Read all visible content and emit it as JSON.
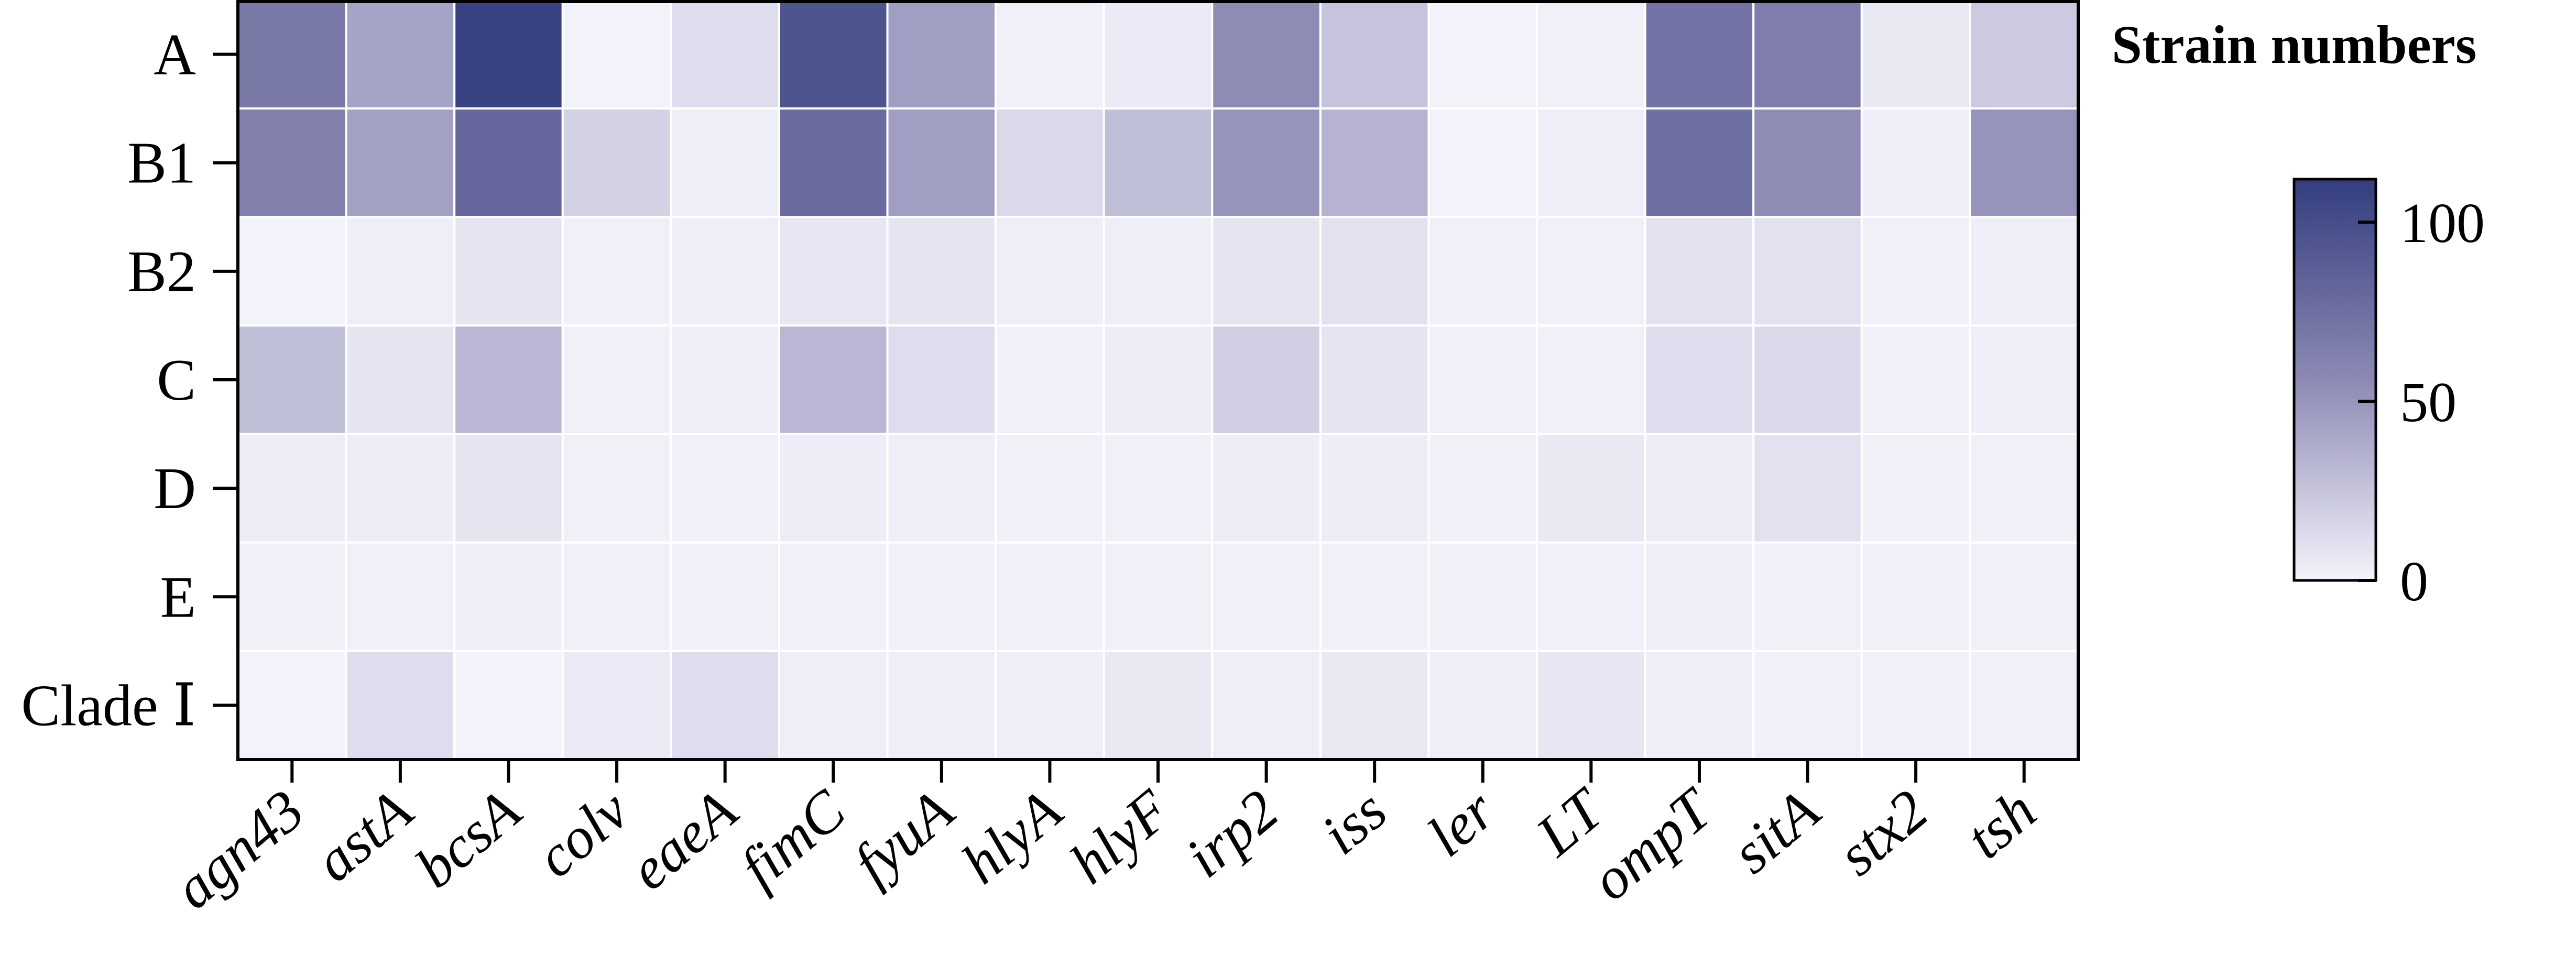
{
  "chart_data": {
    "type": "heatmap",
    "rows": [
      "A",
      "B1",
      "B2",
      "C",
      "D",
      "E",
      "Clade Ⅰ"
    ],
    "columns": [
      "agn43",
      "astA",
      "bcsA",
      "colv",
      "eaeA",
      "fimC",
      "fyuA",
      "hlyA",
      "hlyF",
      "irp2",
      "iss",
      "ler",
      "LT",
      "ompT",
      "sitA",
      "stx2",
      "tsh"
    ],
    "values": [
      [
        68,
        42,
        108,
        1,
        12,
        95,
        45,
        2,
        5,
        55,
        25,
        1,
        2,
        72,
        65,
        6,
        22
      ],
      [
        62,
        44,
        80,
        18,
        3,
        78,
        45,
        14,
        28,
        50,
        34,
        1,
        3,
        75,
        55,
        3,
        50
      ],
      [
        1,
        3,
        8,
        2,
        3,
        7,
        8,
        3,
        3,
        8,
        10,
        2,
        2,
        10,
        10,
        2,
        3
      ],
      [
        28,
        8,
        32,
        2,
        3,
        32,
        12,
        2,
        4,
        20,
        8,
        2,
        2,
        12,
        14,
        2,
        3
      ],
      [
        4,
        4,
        8,
        2,
        2,
        4,
        3,
        2,
        2,
        4,
        4,
        2,
        6,
        4,
        10,
        2,
        2
      ],
      [
        2,
        2,
        3,
        2,
        2,
        2,
        2,
        2,
        2,
        2,
        2,
        2,
        2,
        3,
        2,
        2,
        2
      ],
      [
        1,
        12,
        1,
        5,
        12,
        3,
        3,
        3,
        6,
        3,
        6,
        3,
        7,
        3,
        2,
        2,
        2
      ]
    ],
    "legend_title": "Strain numbers",
    "colorbar_ticks": [
      0,
      50,
      100
    ],
    "colorbar_range": [
      0,
      112
    ],
    "colors": {
      "low": "#f4f4fc",
      "mid": "#8c89b4",
      "high": "#333d7e",
      "grid": "#ffffff"
    }
  }
}
